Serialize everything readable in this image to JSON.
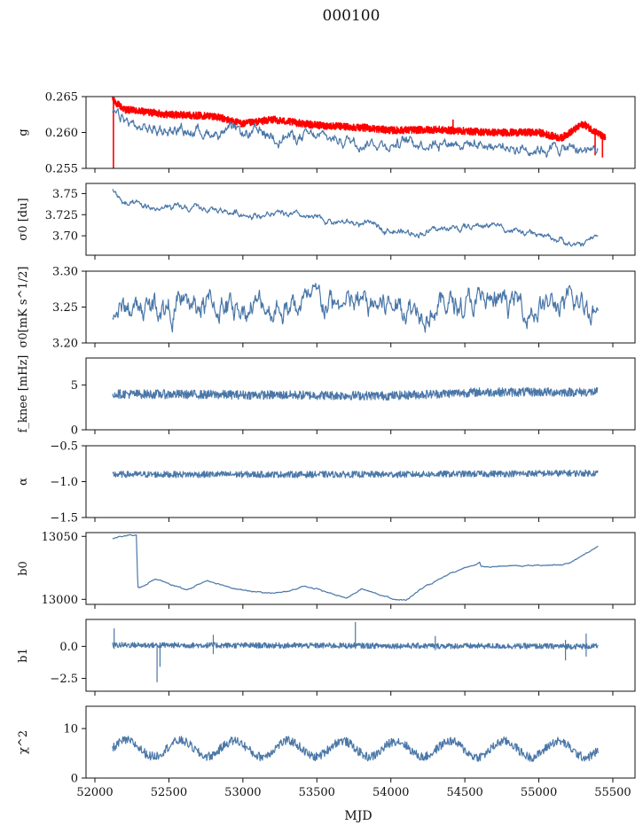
{
  "figure": {
    "title": "000100",
    "xlabel": "MJD"
  },
  "chart_data": {
    "type": "line",
    "x_range": [
      52120,
      55400
    ],
    "x_axis": {
      "lim": [
        51940,
        55650
      ],
      "ticks": [
        52000,
        52500,
        53000,
        53500,
        54000,
        54500,
        55000,
        55500
      ]
    },
    "panels": [
      {
        "ylabel": "g",
        "ylim": [
          0.255,
          0.265
        ],
        "yticks": [
          0.255,
          0.26,
          0.265
        ],
        "ytick_labels": [
          "0.255",
          "0.260",
          "0.265"
        ],
        "series": [
          {
            "color": "#ff0000",
            "kind": "dense",
            "noise": 0.0005,
            "trend": [
              [
                52120,
                0.2645
              ],
              [
                52200,
                0.2632
              ],
              [
                52500,
                0.2625
              ],
              [
                52800,
                0.2623
              ],
              [
                53000,
                0.2612
              ],
              [
                53200,
                0.2618
              ],
              [
                53500,
                0.261
              ],
              [
                53800,
                0.2607
              ],
              [
                54000,
                0.2603
              ],
              [
                54300,
                0.2604
              ],
              [
                54700,
                0.26
              ],
              [
                55000,
                0.26
              ],
              [
                55150,
                0.2592
              ],
              [
                55300,
                0.2612
              ],
              [
                55450,
                0.2592
              ]
            ],
            "spikes": [
              [
                52125,
                0.255,
                0.265
              ],
              [
                54420,
                0.26,
                0.2618
              ],
              [
                55380,
                0.2568,
                0.26
              ],
              [
                55430,
                0.2565,
                0.2595
              ]
            ]
          },
          {
            "color": "#4a77a8",
            "kind": "wiggle",
            "noise": 0.0005,
            "trend": [
              [
                52120,
                0.2625
              ],
              [
                52300,
                0.2605
              ],
              [
                52700,
                0.2602
              ],
              [
                53000,
                0.2598
              ],
              [
                53300,
                0.2595
              ],
              [
                53700,
                0.259
              ],
              [
                54000,
                0.2585
              ],
              [
                54400,
                0.2588
              ],
              [
                54800,
                0.258
              ],
              [
                55100,
                0.2578
              ],
              [
                55400,
                0.2575
              ]
            ]
          }
        ]
      },
      {
        "ylabel": "σ0 [du]",
        "ylim": [
          3.677,
          3.762
        ],
        "yticks": [
          3.7,
          3.725,
          3.75
        ],
        "ytick_labels": [
          "3.70",
          "3.725",
          "3.75"
        ],
        "series": [
          {
            "color": "#4a77a8",
            "kind": "wiggle",
            "noise": 0.0025,
            "trend": [
              [
                52120,
                3.755
              ],
              [
                52200,
                3.737
              ],
              [
                52400,
                3.732
              ],
              [
                52800,
                3.731
              ],
              [
                53000,
                3.726
              ],
              [
                53300,
                3.724
              ],
              [
                53600,
                3.717
              ],
              [
                53900,
                3.712
              ],
              [
                54100,
                3.703
              ],
              [
                54400,
                3.708
              ],
              [
                54700,
                3.714
              ],
              [
                54900,
                3.702
              ],
              [
                55150,
                3.696
              ],
              [
                55250,
                3.686
              ],
              [
                55400,
                3.701
              ]
            ]
          }
        ]
      },
      {
        "ylabel": "σ0[mK s^1/2]",
        "ylim": [
          3.2,
          3.3
        ],
        "yticks": [
          3.2,
          3.25,
          3.3
        ],
        "ytick_labels": [
          "3.20",
          "3.25",
          "3.30"
        ],
        "series": [
          {
            "color": "#4a77a8",
            "kind": "wiggle",
            "noise": 0.011,
            "trend": [
              [
                52120,
                3.245
              ],
              [
                52500,
                3.252
              ],
              [
                53000,
                3.25
              ],
              [
                53500,
                3.253
              ],
              [
                54000,
                3.252
              ],
              [
                54500,
                3.255
              ],
              [
                55000,
                3.252
              ],
              [
                55400,
                3.25
              ]
            ]
          }
        ]
      },
      {
        "ylabel": "f_knee [mHz]",
        "ylim": [
          0,
          8
        ],
        "yticks": [
          0,
          5
        ],
        "ytick_labels": [
          "0",
          "5"
        ],
        "series": [
          {
            "color": "#4a77a8",
            "kind": "noisy",
            "noise": 0.5,
            "trend": [
              [
                52120,
                4.0
              ],
              [
                53000,
                3.9
              ],
              [
                54000,
                3.8
              ],
              [
                54600,
                4.2
              ],
              [
                55400,
                4.2
              ]
            ]
          }
        ]
      },
      {
        "ylabel": "α",
        "ylim": [
          -1.5,
          -0.5
        ],
        "yticks": [
          -1.5,
          -1.0,
          -0.5
        ],
        "ytick_labels": [
          "−1.5",
          "−1.0",
          "−0.5"
        ],
        "series": [
          {
            "color": "#4a77a8",
            "kind": "noisy",
            "noise": 0.045,
            "trend": [
              [
                52120,
                -0.9
              ],
              [
                53000,
                -0.9
              ],
              [
                54000,
                -0.9
              ],
              [
                55400,
                -0.88
              ]
            ]
          }
        ]
      },
      {
        "ylabel": "b0",
        "ylim": [
          12996,
          13053
        ],
        "yticks": [
          13000,
          13050
        ],
        "ytick_labels": [
          "13000",
          "13050"
        ],
        "series": [
          {
            "color": "#4a77a8",
            "kind": "wiggle",
            "noise": 0.3,
            "trend": [
              [
                52120,
                13048
              ],
              [
                52160,
                13050
              ],
              [
                52280,
                13051
              ],
              [
                52290,
                13009
              ],
              [
                52350,
                13012
              ],
              [
                52400,
                13016
              ],
              [
                52500,
                13013
              ],
              [
                52620,
                13007
              ],
              [
                52700,
                13012
              ],
              [
                52760,
                13015
              ],
              [
                53000,
                13007
              ],
              [
                53180,
                13005
              ],
              [
                53300,
                13006
              ],
              [
                53400,
                13010
              ],
              [
                53500,
                13008
              ],
              [
                53700,
                13001
              ],
              [
                53800,
                13008
              ],
              [
                53900,
                13005
              ],
              [
                54000,
                13001
              ],
              [
                54100,
                12999
              ],
              [
                54200,
                13008
              ],
              [
                54400,
                13020
              ],
              [
                54600,
                13029
              ],
              [
                54610,
                13026
              ],
              [
                55000,
                13027
              ],
              [
                55200,
                13028
              ],
              [
                55300,
                13035
              ],
              [
                55400,
                13042
              ]
            ]
          }
        ]
      },
      {
        "ylabel": "b1",
        "ylim": [
          -3.5,
          2.1
        ],
        "yticks": [
          -2.5,
          0.0
        ],
        "ytick_labels": [
          "−2.5",
          "0.0"
        ],
        "series": [
          {
            "color": "#4a77a8",
            "kind": "noisy",
            "noise": 0.22,
            "trend": [
              [
                52120,
                0.1
              ],
              [
                55400,
                0.0
              ]
            ],
            "spikes": [
              [
                52130,
                -0.2,
                1.4
              ],
              [
                52420,
                -2.8,
                0.1
              ],
              [
                52440,
                -1.6,
                0.3
              ],
              [
                52800,
                -0.6,
                0.9
              ],
              [
                53760,
                0.0,
                1.9
              ],
              [
                54300,
                -0.3,
                0.8
              ],
              [
                55180,
                -1.1,
                0.5
              ],
              [
                55320,
                -0.8,
                1.0
              ]
            ]
          }
        ]
      },
      {
        "ylabel": "χ^2",
        "ylim": [
          0,
          14.5
        ],
        "yticks": [
          0,
          10
        ],
        "ytick_labels": [
          "0",
          "10"
        ],
        "series": [
          {
            "color": "#4a77a8",
            "kind": "periodic",
            "noise": 0.9,
            "period": 365,
            "amplitude": 1.6,
            "trend": [
              [
                52120,
                6.0
              ],
              [
                55400,
                5.8
              ]
            ]
          }
        ]
      }
    ]
  }
}
